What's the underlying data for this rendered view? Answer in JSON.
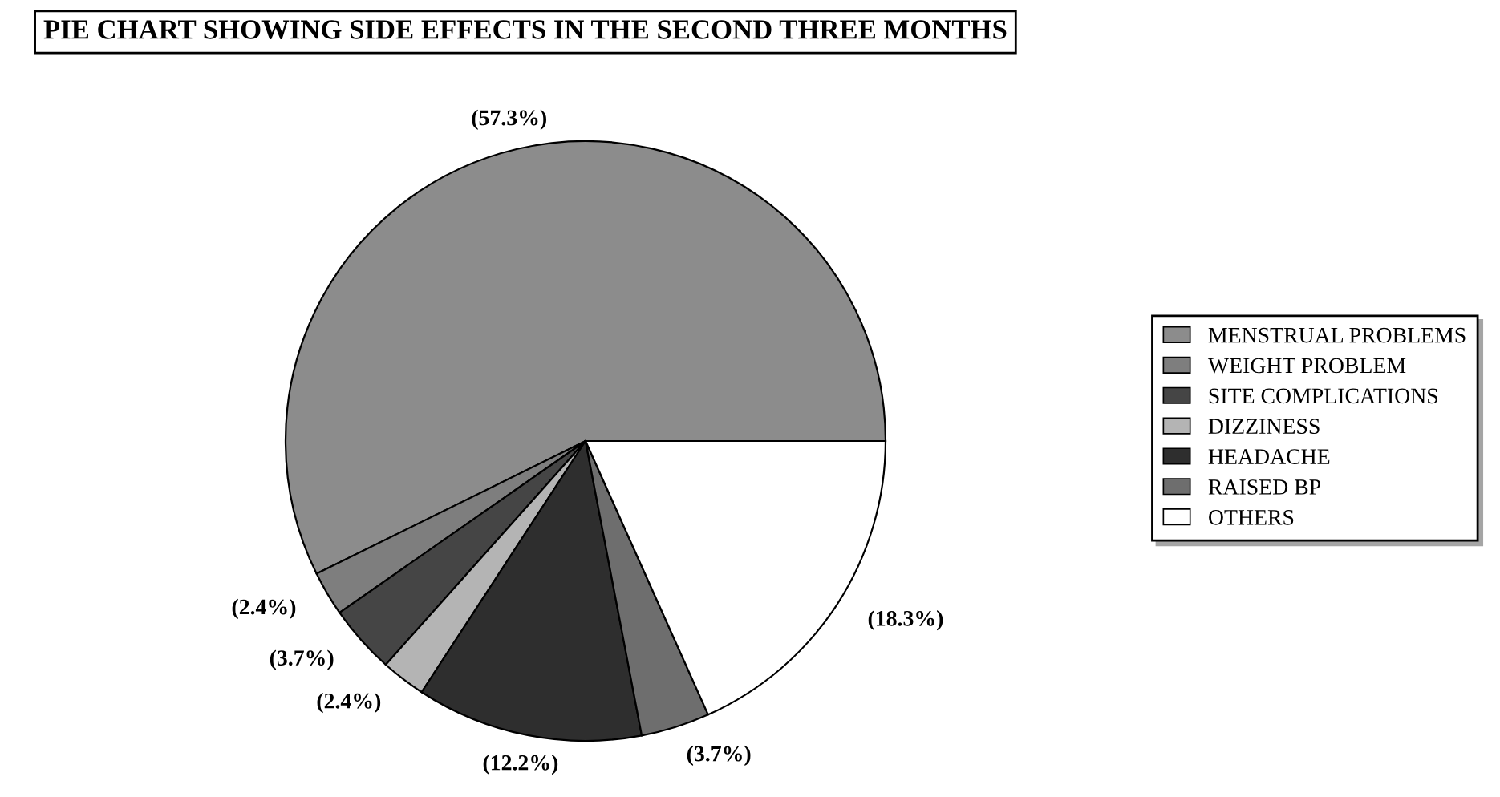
{
  "chart_data": {
    "type": "pie",
    "title": "PIE CHART SHOWING SIDE EFFECTS IN THE SECOND THREE MONTHS",
    "categories": [
      "MENSTRUAL PROBLEMS",
      "WEIGHT PROBLEM",
      "SITE COMPLICATIONS",
      "DIZZINESS",
      "HEADACHE",
      "RAISED BP",
      "OTHERS"
    ],
    "values": [
      57.3,
      2.4,
      3.7,
      2.4,
      12.2,
      3.7,
      18.3
    ],
    "value_labels": [
      "(57.3%)",
      "(2.4%)",
      "(3.7%)",
      "(2.4%)",
      "(12.2%)",
      "(3.7%)",
      "(18.3%)"
    ],
    "colors": [
      "#8c8c8c",
      "#7e7e7e",
      "#454545",
      "#b4b4b4",
      "#2e2e2e",
      "#6e6e6e",
      "#ffffff"
    ],
    "legend": "right"
  }
}
